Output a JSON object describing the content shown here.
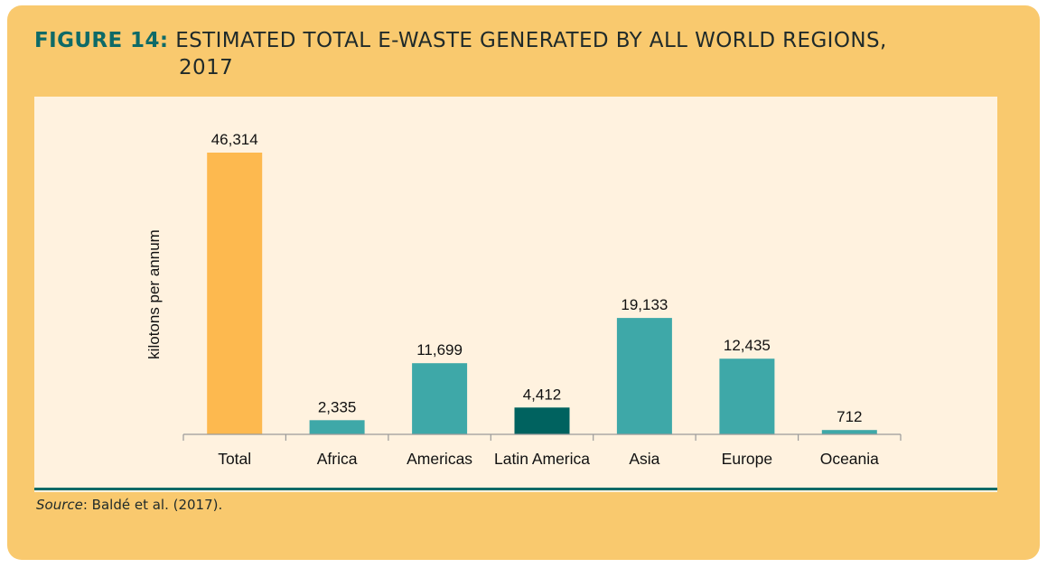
{
  "figure": {
    "label": "FIGURE 14:",
    "title_line1": "ESTIMATED TOTAL E-WASTE GENERATED BY ALL WORLD REGIONS,",
    "title_line2": "2017"
  },
  "source": {
    "label": "Source",
    "text": ": Baldé et al. (2017)."
  },
  "colors": {
    "panel": "#f9c96e",
    "plot_bg": "#fff2df",
    "total_bar": "#fdb94f",
    "region_bar": "#3ea8a8",
    "highlight_bar": "#00625f",
    "rule": "#0e6a67"
  },
  "chart_data": {
    "type": "bar",
    "title": "ESTIMATED TOTAL E-WASTE GENERATED BY ALL WORLD REGIONS, 2017",
    "xlabel": "",
    "ylabel": "kilotons per annum",
    "ylim": [
      0,
      46314
    ],
    "grid": false,
    "categories": [
      "Total",
      "Africa",
      "Americas",
      "Latin America",
      "Asia",
      "Europe",
      "Oceania"
    ],
    "values": [
      46314,
      2335,
      11699,
      4412,
      19133,
      12435,
      712
    ],
    "value_labels": [
      "46,314",
      "2,335",
      "11,699",
      "4,412",
      "19,133",
      "12,435",
      "712"
    ],
    "bar_colors": [
      "#fdb94f",
      "#3ea8a8",
      "#3ea8a8",
      "#00625f",
      "#3ea8a8",
      "#3ea8a8",
      "#3ea8a8"
    ]
  }
}
